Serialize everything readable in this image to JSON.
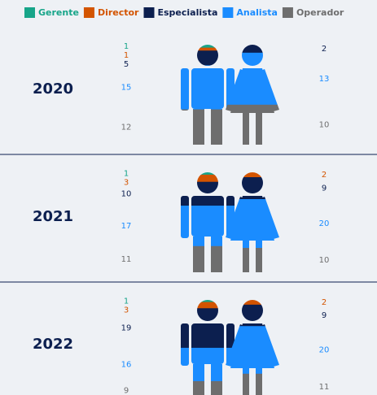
{
  "chart_data": {
    "type": "pictogram",
    "categories": [
      "2020",
      "2021",
      "2022"
    ],
    "series": [
      {
        "name": "Gerente",
        "color": "#17a589",
        "values": [
          [
            1,
            null
          ],
          [
            1,
            null
          ],
          [
            1,
            null
          ]
        ]
      },
      {
        "name": "Director",
        "color": "#d35400",
        "values": [
          [
            1,
            null
          ],
          [
            3,
            2
          ],
          [
            3,
            2
          ]
        ]
      },
      {
        "name": "Especialista",
        "color": "#0c1f4f",
        "values": [
          [
            5,
            2
          ],
          [
            10,
            9
          ],
          [
            19,
            9
          ]
        ]
      },
      {
        "name": "Analista",
        "color": "#1a8cff",
        "values": [
          [
            15,
            13
          ],
          [
            17,
            20
          ],
          [
            16,
            20
          ]
        ]
      },
      {
        "name": "Operador",
        "color": "#6e6e6e",
        "values": [
          [
            12,
            10
          ],
          [
            11,
            10
          ],
          [
            9,
            11
          ]
        ]
      }
    ]
  }
}
